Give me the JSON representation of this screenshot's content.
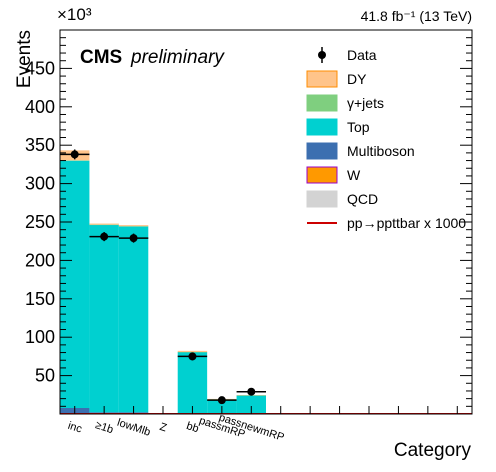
{
  "chart_data": {
    "type": "bar",
    "stacked": true,
    "xlabel": "Category",
    "ylabel": "Events",
    "y_multiplier": "×10³",
    "lumi": "41.8 fb⁻¹ (13 TeV)",
    "experiment": "CMS",
    "status": "preliminary",
    "ylim": [
      0,
      500
    ],
    "yticks": [
      50,
      100,
      150,
      200,
      250,
      300,
      350,
      400,
      450
    ],
    "yticklabels": [
      "50",
      "100",
      "150",
      "200",
      "250",
      "300",
      "350",
      "400",
      "450"
    ],
    "categories": [
      "inc",
      "≥1b",
      "lowMlb",
      "Z",
      "bb",
      "passmRP",
      "passnewmRP",
      "",
      "",
      "",
      "",
      "",
      "",
      ""
    ],
    "series": [
      {
        "name": "QCD",
        "color": "#d3d3d3",
        "values": [
          0.5,
          0.3,
          0.3,
          0,
          0.1,
          0.05,
          0.05,
          0,
          0,
          0,
          0,
          0,
          0,
          0
        ]
      },
      {
        "name": "W",
        "color": "#ff9900",
        "values": [
          0.8,
          0.4,
          0.4,
          0,
          0.1,
          0.05,
          0.05,
          0,
          0,
          0,
          0,
          0,
          0,
          0
        ]
      },
      {
        "name": "Multiboson",
        "color": "#3c6fb0",
        "values": [
          6.5,
          1.5,
          1.5,
          0,
          0.4,
          0.2,
          0.2,
          0,
          0,
          0,
          0,
          0,
          0,
          0
        ]
      },
      {
        "name": "Top",
        "color": "#00d0d0",
        "values": [
          322,
          244,
          242,
          0,
          80,
          19,
          24,
          0,
          0,
          0,
          0,
          0,
          0,
          0
        ]
      },
      {
        "name": "γ+jets",
        "color": "#7fcf7f",
        "values": [
          0.5,
          0.3,
          0.3,
          0,
          0.1,
          0.05,
          0.05,
          0,
          0,
          0,
          0,
          0,
          0,
          0
        ]
      },
      {
        "name": "DY",
        "color": "#ffc48a",
        "values": [
          13,
          1.5,
          1.5,
          0,
          1.5,
          0.3,
          0.3,
          0,
          0,
          0,
          0,
          0,
          0,
          0
        ]
      }
    ],
    "data": {
      "name": "Data",
      "values": [
        338,
        231,
        229,
        null,
        75,
        18,
        29,
        null,
        null,
        null,
        null,
        null,
        null,
        null
      ],
      "errors": [
        2.5,
        2,
        2,
        null,
        1.2,
        0.6,
        0.8,
        null,
        null,
        null,
        null,
        null,
        null,
        null
      ]
    },
    "signal": {
      "name": "pp→ppttbar x 1000",
      "color": "#cc0000",
      "values": [
        0.3,
        0.3,
        0.3,
        0.3,
        0.3,
        0.3,
        0.3,
        0.3,
        0.3,
        0.3,
        0.3,
        0.3,
        0.3,
        0.3
      ]
    },
    "legend": {
      "placement": "top-right",
      "entries": [
        {
          "label": "Data",
          "kind": "marker",
          "color": "#000000"
        },
        {
          "label": "DY",
          "kind": "fill",
          "color": "#ffc48a",
          "border": "#ff8c00"
        },
        {
          "label": "γ+jets",
          "kind": "fill",
          "color": "#7fcf7f",
          "border": "#7fcf7f"
        },
        {
          "label": "Top",
          "kind": "fill",
          "color": "#00d0d0",
          "border": "#00d0d0"
        },
        {
          "label": "Multiboson",
          "kind": "fill",
          "color": "#3c6fb0",
          "border": "#3c6fb0"
        },
        {
          "label": "W",
          "kind": "fill",
          "color": "#ff9900",
          "border": "#9900cc"
        },
        {
          "label": "QCD",
          "kind": "fill",
          "color": "#d3d3d3",
          "border": "#d3d3d3"
        },
        {
          "label": "pp→ppttbar x 1000",
          "kind": "line",
          "color": "#cc0000"
        }
      ]
    }
  }
}
